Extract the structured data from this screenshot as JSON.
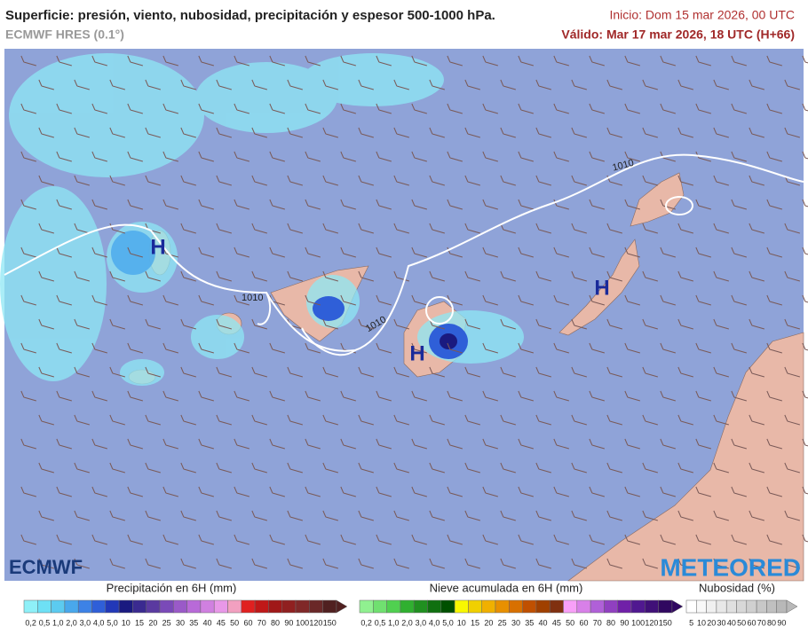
{
  "header": {
    "title": "Superficie: presión, viento, nubosidad, precipitación y espesor 500-1000 hPa.",
    "model": "ECMWF HRES (0.1°)",
    "init": "Inicio: Dom 15 mar 2026, 00 UTC",
    "valid": "Válido: Mar 17 mar 2026, 18 UTC (H+66)"
  },
  "map": {
    "highs": [
      "H",
      "H",
      "H"
    ],
    "isobars": [
      "1010",
      "1010",
      "1010"
    ]
  },
  "logos": {
    "left": "ECMWF",
    "right": "METEORED"
  },
  "legends": [
    {
      "title": "Precipitación en 6H (mm)",
      "labels": [
        "0,2",
        "0,5",
        "1,0",
        "2,0",
        "3,0",
        "4,0",
        "5,0",
        "10",
        "15",
        "20",
        "25",
        "30",
        "35",
        "40",
        "45",
        "50",
        "60",
        "70",
        "80",
        "90",
        "100",
        "120",
        "150"
      ],
      "colors": [
        "#8ef0f8",
        "#6ee0f5",
        "#5ccbf0",
        "#49a8ec",
        "#3d82e6",
        "#2f5fd8",
        "#2238b8",
        "#1a1a80",
        "#3a2a90",
        "#5a3aa0",
        "#7a4ab8",
        "#9a5ac8",
        "#b86ad8",
        "#d080e0",
        "#e898e8",
        "#f2a0c0",
        "#e02020",
        "#c01818",
        "#a01818",
        "#902020",
        "#802828",
        "#6a2828",
        "#502020"
      ]
    },
    {
      "title": "Nieve acumulada en 6H (mm)",
      "labels": [
        "0,2",
        "0,5",
        "1,0",
        "2,0",
        "3,0",
        "4,0",
        "5,0",
        "10",
        "15",
        "20",
        "25",
        "30",
        "35",
        "40",
        "45",
        "50",
        "60",
        "70",
        "80",
        "90",
        "100",
        "120",
        "150"
      ],
      "colors": [
        "#90f090",
        "#70e070",
        "#50d050",
        "#30b030",
        "#209020",
        "#107010",
        "#005000",
        "#f8f800",
        "#f0d000",
        "#f0b000",
        "#e89000",
        "#d87000",
        "#c05000",
        "#a04000",
        "#803010",
        "#f8a0f8",
        "#d880e8",
        "#b060d8",
        "#9040c0",
        "#7020a8",
        "#501890",
        "#401078",
        "#300860"
      ]
    },
    {
      "title": "Nubosidad (%)",
      "labels": [
        "5",
        "10",
        "20",
        "30",
        "40",
        "50",
        "60",
        "70",
        "80",
        "90"
      ],
      "colors": [
        "#ffffff",
        "#f8f8f8",
        "#f0f0f0",
        "#e8e8e8",
        "#e0e0e0",
        "#d8d8d8",
        "#d0d0d0",
        "#c8c8c8",
        "#c0c0c0",
        "#b8b8b8"
      ]
    }
  ]
}
